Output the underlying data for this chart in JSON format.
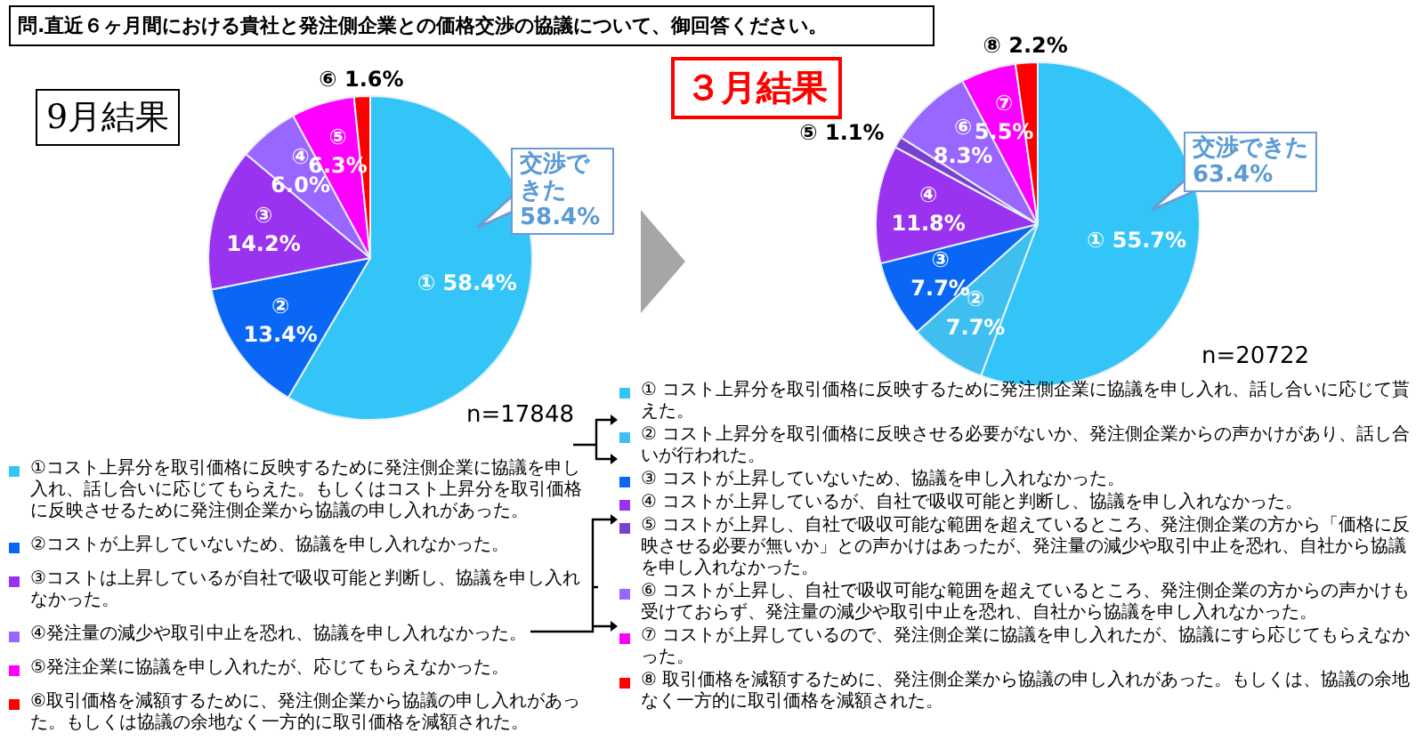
{
  "chart_data": [
    {
      "type": "pie",
      "title": "問.直近６ヶ月間における貴社と発注側企業との価格交渉の協議について、御回答ください。",
      "subtitle": "9月結果",
      "categories": [
        "①コスト上昇分を取引価格に反映するために発注側企業に協議を申し入れ、話し合いに応じてもらえた。もしくはコスト上昇分を取引価格に反映させるために発注側企業から協議の申し入れがあった。",
        "②コストが上昇していないため、協議を申し入れなかった。",
        "③コストは上昇しているが自社で吸収可能と判断し、協議を申し入れなかった。",
        "④発注量の減少や取引中止を恐れ、協議を申し入れなかった。",
        "⑤発注企業に協議を申し入れたが、応じてもらえなかった。",
        "⑥取引価格を減額するために、発注側企業から協議の申し入れがあった。もしくは協議の余地なく一方的に取引価格を減額された。"
      ],
      "values": [
        58.4,
        13.4,
        14.2,
        6.0,
        6.3,
        1.6
      ],
      "colors": [
        "#33c5f7",
        "#0a66f5",
        "#9a33f0",
        "#9966ff",
        "#ff00ff",
        "#ff0000"
      ],
      "value_labels": [
        "① 58.4%",
        "② 13.4%",
        "③ 14.2%",
        "④ 6.0%",
        "⑤ 6.3%",
        "⑥ 1.6%"
      ],
      "annotations": [
        "交渉できた 58.4%",
        "n=17848"
      ],
      "legend": "bottom"
    },
    {
      "type": "pie",
      "title": "３月結果",
      "categories": [
        "① コスト上昇分を取引価格に反映するために発注側企業に協議を申し入れ、話し合いに応じて貰えた。",
        "② コスト上昇分を取引価格に反映させる必要がないか、発注側企業からの声かけがあり、話し合いが行われた。",
        "③ コストが上昇していないため、協議を申し入れなかった。",
        "④ コストが上昇しているが、自社で吸収可能と判断し、協議を申し入れなかった。",
        "⑤ コストが上昇し、自社で吸収可能な範囲を超えているところ、発注側企業の方から「価格に反映させる必要が無いか」との声かけはあったが、発注量の減少や取引中止を恐れ、自社から協議を申し入れなかった。",
        "⑥ コストが上昇し、自社で吸収可能な範囲を超えているところ、発注側企業の方からの声かけも受けておらず、発注量の減少や取引中止を恐れ、自社から協議を申し入れなかった。",
        "⑦ コストが上昇しているので、発注側企業に協議を申し入れたが、協議にすら応じてもらえなかった。",
        "⑧ 取引価格を減額するために、発注側企業から協議の申し入れがあった。もしくは、協議の余地なく一方的に取引価格を減額された。"
      ],
      "values": [
        55.7,
        7.7,
        7.7,
        11.8,
        1.1,
        8.3,
        5.5,
        2.2
      ],
      "colors": [
        "#33c5f7",
        "#3fbff0",
        "#0a66f5",
        "#9a33f0",
        "#7a40d0",
        "#9966ff",
        "#ff00ff",
        "#ff0000"
      ],
      "value_labels": [
        "① 55.7%",
        "② 7.7%",
        "③ 7.7%",
        "④ 11.8%",
        "⑤ 1.1%",
        "⑥ 8.3%",
        "⑦ 5.5%",
        "⑧ 2.2%"
      ],
      "annotations": [
        "交渉できた 63.4%",
        "n=20722"
      ],
      "legend": "bottom"
    }
  ]
}
